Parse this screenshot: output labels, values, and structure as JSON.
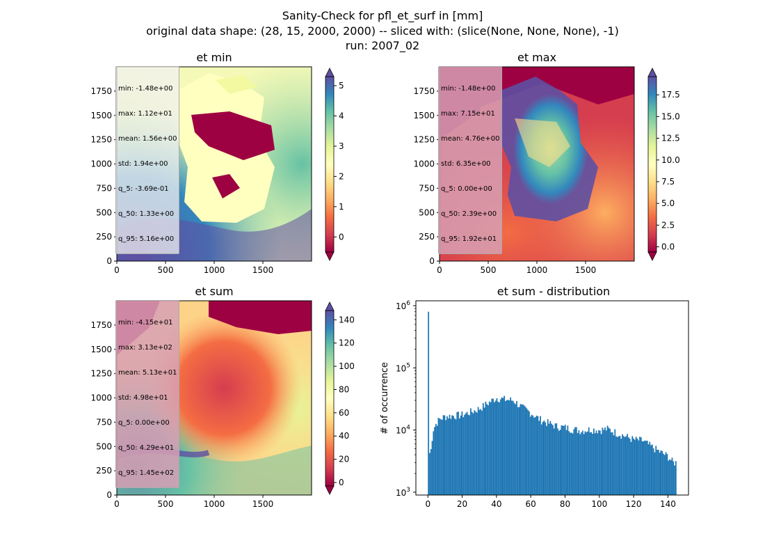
{
  "suptitle": {
    "line1": "Sanity-Check for pfl_et_surf in [mm]",
    "line2": "original data shape: (28, 15, 2000, 2000) -- sliced with: (slice(None, None, None), -1)",
    "line3": "run: 2007_02"
  },
  "colors": {
    "spectral": [
      "#9e0142",
      "#d53e4f",
      "#f46d43",
      "#fdae61",
      "#fee08b",
      "#ffffbf",
      "#e6f598",
      "#abdda4",
      "#66c2a5",
      "#3288bd",
      "#5e4fa2"
    ],
    "hist_bar": "#1f77b4"
  },
  "chart_data": [
    {
      "type": "heatmap",
      "title": "et min",
      "x_ticks": [
        "0",
        "500",
        "1000",
        "1500"
      ],
      "y_ticks": [
        "0",
        "250",
        "500",
        "750",
        "1000",
        "1250",
        "1500",
        "1750"
      ],
      "x_range": [
        0,
        2000
      ],
      "y_range": [
        0,
        2000
      ],
      "colorbar": {
        "range": [
          -0.5,
          5.3
        ],
        "ticks": [
          "0",
          "1",
          "2",
          "3",
          "4",
          "5"
        ],
        "tick_values": [
          0,
          1,
          2,
          3,
          4,
          5
        ],
        "extend": "both"
      },
      "stats": [
        "min: -1.48e+00",
        "max: 1.12e+01",
        "mean: 1.56e+00",
        "std: 1.94e+00",
        "q_5: -3.69e-01",
        "q_50: 1.33e+00",
        "q_95: 5.16e+00"
      ]
    },
    {
      "type": "heatmap",
      "title": "et max",
      "x_ticks": [
        "0",
        "500",
        "1000",
        "1500"
      ],
      "y_ticks": [
        "0",
        "250",
        "500",
        "750",
        "1000",
        "1250",
        "1500",
        "1750"
      ],
      "x_range": [
        0,
        2000
      ],
      "y_range": [
        0,
        2000
      ],
      "colorbar": {
        "range": [
          -0.6,
          19.6
        ],
        "ticks": [
          "0.0",
          "2.5",
          "5.0",
          "7.5",
          "10.0",
          "12.5",
          "15.0",
          "17.5"
        ],
        "tick_values": [
          0,
          2.5,
          5,
          7.5,
          10,
          12.5,
          15,
          17.5
        ],
        "extend": "both"
      },
      "stats": [
        "min: -1.48e+00",
        "max: 7.15e+01",
        "mean: 4.76e+00",
        "std: 6.35e+00",
        "q_5: 0.00e+00",
        "q_50: 2.39e+00",
        "q_95: 1.92e+01"
      ]
    },
    {
      "type": "heatmap",
      "title": "et sum",
      "x_ticks": [
        "0",
        "500",
        "1000",
        "1500"
      ],
      "y_ticks": [
        "0",
        "250",
        "500",
        "750",
        "1000",
        "1250",
        "1500",
        "1750"
      ],
      "x_range": [
        0,
        2000
      ],
      "y_range": [
        0,
        2000
      ],
      "colorbar": {
        "range": [
          -3,
          148
        ],
        "ticks": [
          "0",
          "20",
          "40",
          "60",
          "80",
          "100",
          "120",
          "140"
        ],
        "tick_values": [
          0,
          20,
          40,
          60,
          80,
          100,
          120,
          140
        ],
        "extend": "both"
      },
      "stats": [
        "min: -4.15e+01",
        "max: 3.13e+02",
        "mean: 5.13e+01",
        "std: 4.98e+01",
        "q_5: 0.00e+00",
        "q_50: 4.29e+01",
        "q_95: 1.45e+02"
      ]
    },
    {
      "type": "bar",
      "title": "et sum - distribution",
      "ylabel": "# of occurrence",
      "yscale": "log",
      "xlim": [
        -7,
        152
      ],
      "ylim": [
        900,
        1200000
      ],
      "x_ticks": [
        0,
        20,
        40,
        60,
        80,
        100,
        120,
        140
      ],
      "y_ticks": [
        {
          "value": 1000,
          "base": "10",
          "exp": "3"
        },
        {
          "value": 10000,
          "base": "10",
          "exp": "4"
        },
        {
          "value": 100000,
          "base": "10",
          "exp": "5"
        },
        {
          "value": 1000000,
          "base": "10",
          "exp": "6"
        }
      ],
      "bin_range": [
        0,
        145
      ],
      "anchors_x": [
        0,
        0.8,
        1.5,
        3,
        5,
        7,
        10,
        15,
        20,
        25,
        30,
        35,
        40,
        45,
        50,
        55,
        60,
        65,
        70,
        75,
        80,
        85,
        90,
        95,
        100,
        105,
        110,
        115,
        120,
        125,
        130,
        135,
        140,
        143,
        145
      ],
      "anchors_y": [
        800000,
        4500,
        4000,
        10000,
        13000,
        15000,
        16500,
        17000,
        17500,
        19500,
        22000,
        27000,
        33000,
        31000,
        30000,
        23000,
        19000,
        15000,
        13000,
        11500,
        11000,
        10200,
        9800,
        10300,
        10000,
        10400,
        9000,
        8000,
        7000,
        6800,
        5500,
        4500,
        3800,
        3000,
        3000
      ]
    }
  ]
}
